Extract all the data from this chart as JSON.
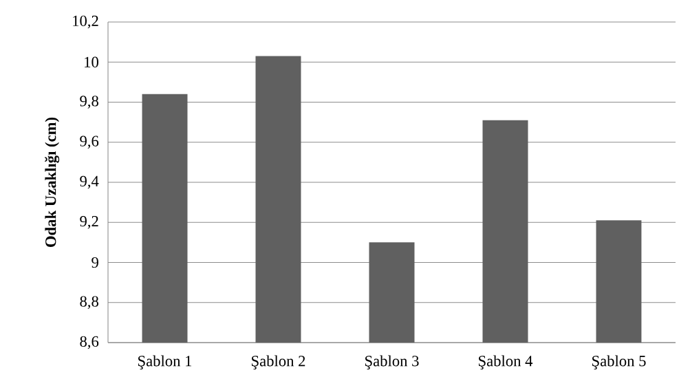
{
  "chart_data": {
    "type": "bar",
    "ylabel": "Odak Uzaklığı (cm)",
    "categories": [
      "Şablon 1",
      "Şablon 2",
      "Şablon 3",
      "Şablon 4",
      "Şablon 5"
    ],
    "values": [
      9.84,
      10.03,
      9.1,
      9.71,
      9.21
    ],
    "color": "#606060",
    "ylim": [
      8.6,
      10.2
    ],
    "yticks": [
      {
        "value": 8.6,
        "label": "8,6"
      },
      {
        "value": 8.8,
        "label": "8,8"
      },
      9,
      {
        "value": 9.2,
        "label": "9,2"
      },
      {
        "value": 9.4,
        "label": "9,4"
      },
      {
        "value": 9.6,
        "label": "9,6"
      },
      {
        "value": 9.8,
        "label": "9,8"
      },
      10,
      {
        "value": 10.2,
        "label": "10,2"
      }
    ],
    "grid": "y"
  }
}
